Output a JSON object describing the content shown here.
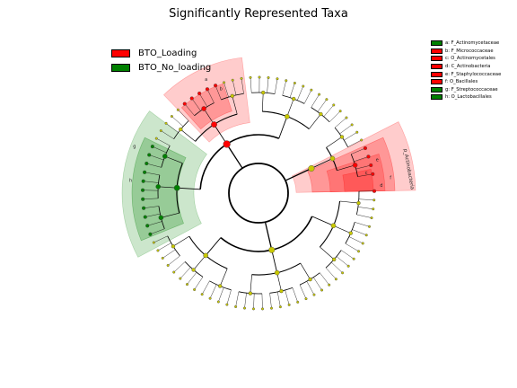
{
  "title": "Significantly Represented Taxa",
  "groups": [
    {
      "name": "BTO_Loading",
      "color": "#ff0000"
    },
    {
      "name": "BTO_No_loading",
      "color": "#008000"
    }
  ],
  "key_legend": [
    {
      "text": "a: F_Actinomycetaceae",
      "group": 1
    },
    {
      "text": "b: F_Micrococcaceae",
      "group": 0
    },
    {
      "text": "c: O_Actinomycetales",
      "group": 0
    },
    {
      "text": "d: C_Actinobacteria",
      "group": 0
    },
    {
      "text": "e: F_Staphylococcaceae",
      "group": 0
    },
    {
      "text": "f: O_Bacillales",
      "group": 0
    },
    {
      "text": "g: F_Streptococcaceae",
      "group": 1
    },
    {
      "text": "h: O_Lactobacillales",
      "group": 1
    }
  ],
  "clade_labels": [
    "p_Actinobacteria",
    "e",
    "f",
    "g",
    "h",
    "a",
    "b",
    "c",
    "d"
  ],
  "colors": {
    "neutral_node": "#c8c800",
    "loading": "#ff0000",
    "no_loading": "#008000"
  }
}
